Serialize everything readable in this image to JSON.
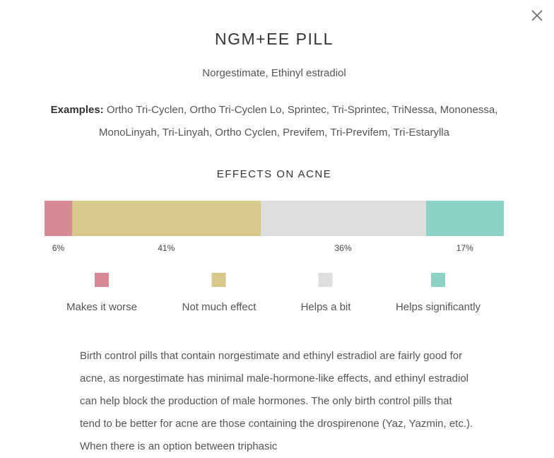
{
  "modal": {
    "close_icon": "close-icon",
    "title": "NGM+EE PILL",
    "subtitle": "Norgestimate, Ethinyl estradiol",
    "examples_label": "Examples:",
    "examples_text": "Ortho Tri-Cyclen, Ortho Tri-Cyclen Lo, Sprintec, Tri-Sprintec, TriNessa, Mononessa, MonoLinyah, Tri-Linyah, Ortho Cyclen, Previfem, Tri-Previfem, Tri-Estarylla",
    "effects_title": "EFFECTS ON ACNE",
    "body_text": "Birth control pills that contain norgestimate and ethinyl estradiol are fairly good for acne, as norgestimate has minimal male-hormone-like effects, and ethinyl estradiol can help block the production of male hormones. The only birth control pills that tend to be better for acne are those containing the drospirenone (Yaz, Yazmin, etc.). When there is an option between triphasic"
  },
  "chart_data": {
    "type": "bar",
    "orientation": "horizontal-stacked",
    "categories": [
      "Makes it worse",
      "Not much effect",
      "Helps a bit",
      "Helps significantly"
    ],
    "values": [
      6,
      41,
      36,
      17
    ],
    "labels": [
      "6%",
      "41%",
      "36%",
      "17%"
    ],
    "colors": [
      "#d58a96",
      "#d6c98b",
      "#dedede",
      "#8cd3c5"
    ],
    "legend_position": "bottom"
  }
}
